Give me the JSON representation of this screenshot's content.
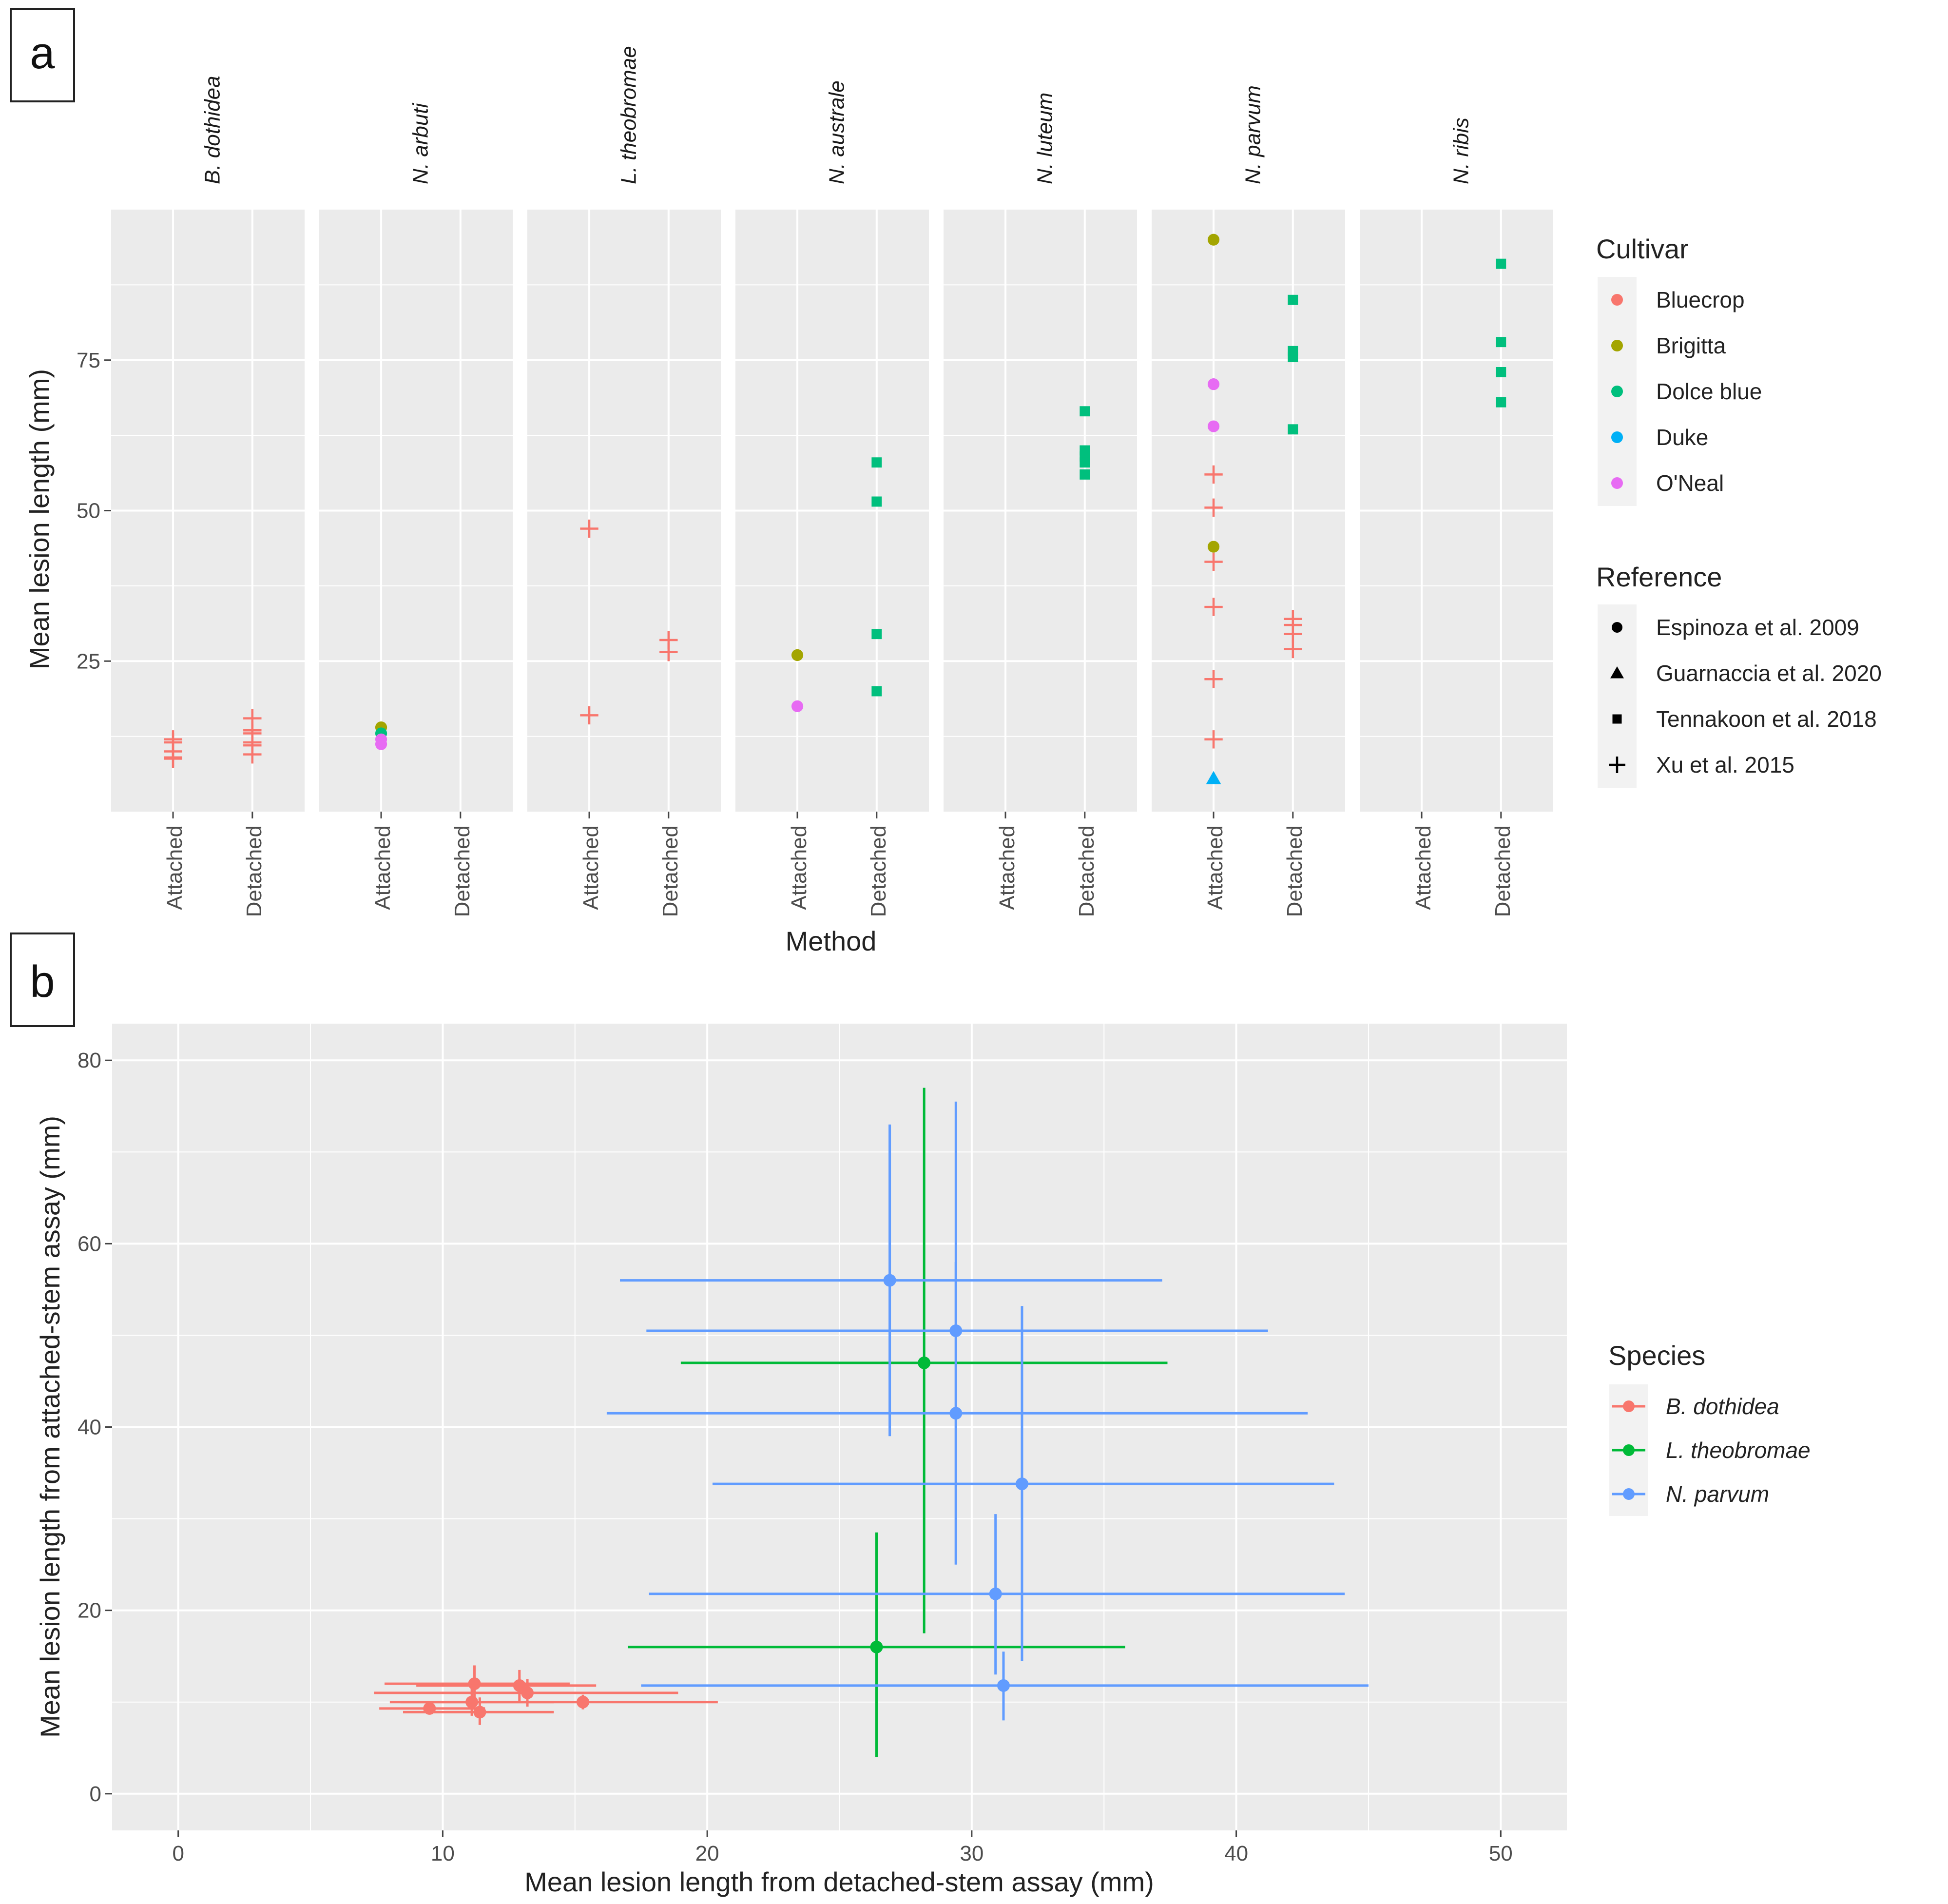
{
  "figure": {
    "panel_a_label": "a",
    "panel_b_label": "b"
  },
  "colors": {
    "panel_bg": "#EBEBEB",
    "grid": "#FFFFFF",
    "Bluecrop": "#F8766D",
    "Brigitta": "#A3A500",
    "Dolce blue": "#00BF7D",
    "Duke": "#00B0F6",
    "O'Neal": "#E76BF3",
    "B. dothidea": "#F8766D",
    "L. theobromae": "#00BA38",
    "N. parvum": "#619CFF"
  },
  "chart_data": [
    {
      "id": "a",
      "type": "scatter",
      "ylabel": "Mean lesion length (mm)",
      "xlabel": "Method",
      "ylim": [
        0,
        100
      ],
      "yticks": [
        25,
        50,
        75
      ],
      "methods": [
        "Attached",
        "Detached"
      ],
      "facets": [
        {
          "name": "B. dothidea",
          "points": [
            {
              "m": "Attached",
              "y": 12,
              "c": "Bluecrop",
              "r": "Xu et al. 2015"
            },
            {
              "m": "Attached",
              "y": 11.5,
              "c": "Bluecrop",
              "r": "Xu et al. 2015"
            },
            {
              "m": "Attached",
              "y": 10,
              "c": "Bluecrop",
              "r": "Xu et al. 2015"
            },
            {
              "m": "Attached",
              "y": 9,
              "c": "Bluecrop",
              "r": "Xu et al. 2015"
            },
            {
              "m": "Attached",
              "y": 8.8,
              "c": "Bluecrop",
              "r": "Xu et al. 2015"
            },
            {
              "m": "Detached",
              "y": 15.5,
              "c": "Bluecrop",
              "r": "Xu et al. 2015"
            },
            {
              "m": "Detached",
              "y": 13.5,
              "c": "Bluecrop",
              "r": "Xu et al. 2015"
            },
            {
              "m": "Detached",
              "y": 13,
              "c": "Bluecrop",
              "r": "Xu et al. 2015"
            },
            {
              "m": "Detached",
              "y": 11.5,
              "c": "Bluecrop",
              "r": "Xu et al. 2015"
            },
            {
              "m": "Detached",
              "y": 11,
              "c": "Bluecrop",
              "r": "Xu et al. 2015"
            },
            {
              "m": "Detached",
              "y": 9.5,
              "c": "Bluecrop",
              "r": "Xu et al. 2015"
            }
          ]
        },
        {
          "name": "N. arbuti",
          "points": [
            {
              "m": "Attached",
              "y": 14,
              "c": "Brigitta",
              "r": "Espinoza et al. 2009"
            },
            {
              "m": "Attached",
              "y": 13,
              "c": "Dolce blue",
              "r": "Espinoza et al. 2009"
            },
            {
              "m": "Attached",
              "y": 12,
              "c": "O'Neal",
              "r": "Espinoza et al. 2009"
            },
            {
              "m": "Attached",
              "y": 11.2,
              "c": "O'Neal",
              "r": "Espinoza et al. 2009"
            }
          ]
        },
        {
          "name": "L. theobromae",
          "points": [
            {
              "m": "Attached",
              "y": 47,
              "c": "Bluecrop",
              "r": "Xu et al. 2015"
            },
            {
              "m": "Attached",
              "y": 16,
              "c": "Bluecrop",
              "r": "Xu et al. 2015"
            },
            {
              "m": "Detached",
              "y": 28.5,
              "c": "Bluecrop",
              "r": "Xu et al. 2015"
            },
            {
              "m": "Detached",
              "y": 26.5,
              "c": "Bluecrop",
              "r": "Xu et al. 2015"
            }
          ]
        },
        {
          "name": "N. australe",
          "points": [
            {
              "m": "Attached",
              "y": 26,
              "c": "Brigitta",
              "r": "Espinoza et al. 2009"
            },
            {
              "m": "Attached",
              "y": 17.5,
              "c": "O'Neal",
              "r": "Espinoza et al. 2009"
            },
            {
              "m": "Detached",
              "y": 58,
              "c": "Dolce blue",
              "r": "Tennakoon et al. 2018"
            },
            {
              "m": "Detached",
              "y": 51.5,
              "c": "Dolce blue",
              "r": "Tennakoon et al. 2018"
            },
            {
              "m": "Detached",
              "y": 29.5,
              "c": "Dolce blue",
              "r": "Tennakoon et al. 2018"
            },
            {
              "m": "Detached",
              "y": 20,
              "c": "Dolce blue",
              "r": "Tennakoon et al. 2018"
            }
          ]
        },
        {
          "name": "N. luteum",
          "points": [
            {
              "m": "Detached",
              "y": 66.5,
              "c": "Dolce blue",
              "r": "Tennakoon et al. 2018"
            },
            {
              "m": "Detached",
              "y": 60,
              "c": "Dolce blue",
              "r": "Tennakoon et al. 2018"
            },
            {
              "m": "Detached",
              "y": 59,
              "c": "Dolce blue",
              "r": "Tennakoon et al. 2018"
            },
            {
              "m": "Detached",
              "y": 58,
              "c": "Dolce blue",
              "r": "Tennakoon et al. 2018"
            },
            {
              "m": "Detached",
              "y": 56,
              "c": "Dolce blue",
              "r": "Tennakoon et al. 2018"
            }
          ]
        },
        {
          "name": "N. parvum",
          "points": [
            {
              "m": "Attached",
              "y": 95,
              "c": "Brigitta",
              "r": "Espinoza et al. 2009"
            },
            {
              "m": "Attached",
              "y": 71,
              "c": "O'Neal",
              "r": "Espinoza et al. 2009"
            },
            {
              "m": "Attached",
              "y": 64,
              "c": "O'Neal",
              "r": "Espinoza et al. 2009"
            },
            {
              "m": "Attached",
              "y": 56,
              "c": "Bluecrop",
              "r": "Xu et al. 2015"
            },
            {
              "m": "Attached",
              "y": 50.5,
              "c": "Bluecrop",
              "r": "Xu et al. 2015"
            },
            {
              "m": "Attached",
              "y": 44,
              "c": "Brigitta",
              "r": "Espinoza et al. 2009"
            },
            {
              "m": "Attached",
              "y": 41.5,
              "c": "Bluecrop",
              "r": "Xu et al. 2015"
            },
            {
              "m": "Attached",
              "y": 34,
              "c": "Bluecrop",
              "r": "Xu et al. 2015"
            },
            {
              "m": "Attached",
              "y": 22,
              "c": "Bluecrop",
              "r": "Xu et al. 2015"
            },
            {
              "m": "Attached",
              "y": 12,
              "c": "Bluecrop",
              "r": "Xu et al. 2015"
            },
            {
              "m": "Attached",
              "y": 5.5,
              "c": "Duke",
              "r": "Guarnaccia et al. 2020"
            },
            {
              "m": "Detached",
              "y": 85,
              "c": "Dolce blue",
              "r": "Tennakoon et al. 2018"
            },
            {
              "m": "Detached",
              "y": 76.5,
              "c": "Dolce blue",
              "r": "Tennakoon et al. 2018"
            },
            {
              "m": "Detached",
              "y": 75.5,
              "c": "Dolce blue",
              "r": "Tennakoon et al. 2018"
            },
            {
              "m": "Detached",
              "y": 63.5,
              "c": "Dolce blue",
              "r": "Tennakoon et al. 2018"
            },
            {
              "m": "Detached",
              "y": 32,
              "c": "Bluecrop",
              "r": "Xu et al. 2015"
            },
            {
              "m": "Detached",
              "y": 31,
              "c": "Bluecrop",
              "r": "Xu et al. 2015"
            },
            {
              "m": "Detached",
              "y": 29.5,
              "c": "Bluecrop",
              "r": "Xu et al. 2015"
            },
            {
              "m": "Detached",
              "y": 27,
              "c": "Bluecrop",
              "r": "Xu et al. 2015"
            }
          ]
        },
        {
          "name": "N. ribis",
          "points": [
            {
              "m": "Detached",
              "y": 91,
              "c": "Dolce blue",
              "r": "Tennakoon et al. 2018"
            },
            {
              "m": "Detached",
              "y": 78,
              "c": "Dolce blue",
              "r": "Tennakoon et al. 2018"
            },
            {
              "m": "Detached",
              "y": 73,
              "c": "Dolce blue",
              "r": "Tennakoon et al. 2018"
            },
            {
              "m": "Detached",
              "y": 68,
              "c": "Dolce blue",
              "r": "Tennakoon et al. 2018"
            }
          ]
        }
      ],
      "legend_cultivar": {
        "title": "Cultivar",
        "items": [
          "Bluecrop",
          "Brigitta",
          "Dolce blue",
          "Duke",
          "O'Neal"
        ]
      },
      "legend_reference": {
        "title": "Reference",
        "items": [
          {
            "label": "Espinoza et al. 2009",
            "shape": "circle"
          },
          {
            "label": "Guarnaccia et al. 2020",
            "shape": "triangle"
          },
          {
            "label": "Tennakoon et al. 2018",
            "shape": "square"
          },
          {
            "label": "Xu et al. 2015",
            "shape": "plus"
          }
        ]
      }
    },
    {
      "id": "b",
      "type": "scatter",
      "xlabel": "Mean lesion length from detached-stem assay (mm)",
      "ylabel": "Mean lesion length from attached-stem assay (mm)",
      "xlim": [
        -2.5,
        52.5
      ],
      "ylim": [
        -4,
        84
      ],
      "xticks": [
        0,
        10,
        20,
        30,
        40,
        50
      ],
      "yticks": [
        0,
        20,
        40,
        60,
        80
      ],
      "legend": {
        "title": "Species",
        "items": [
          "B. dothidea",
          "L. theobromae",
          "N. parvum"
        ]
      },
      "series": [
        {
          "name": "B. dothidea",
          "points": [
            {
              "x": 11.2,
              "y": 12.0,
              "xerr": [
                7.8,
                14.8
              ],
              "yerr": [
                10.5,
                14.0
              ]
            },
            {
              "x": 12.9,
              "y": 11.8,
              "xerr": [
                9.0,
                15.8
              ],
              "yerr": [
                10.0,
                13.5
              ]
            },
            {
              "x": 13.2,
              "y": 11.0,
              "xerr": [
                7.4,
                18.9
              ],
              "yerr": [
                9.5,
                12.5
              ]
            },
            {
              "x": 9.5,
              "y": 9.3,
              "xerr": [
                7.6,
                11.6
              ],
              "yerr": [
                8.7,
                10.0
              ]
            },
            {
              "x": 11.1,
              "y": 10.0,
              "xerr": [
                8.0,
                14.2
              ],
              "yerr": [
                8.5,
                11.5
              ]
            },
            {
              "x": 11.4,
              "y": 8.9,
              "xerr": [
                8.5,
                14.2
              ],
              "yerr": [
                7.5,
                10.5
              ]
            },
            {
              "x": 15.3,
              "y": 10.0,
              "xerr": [
                8.4,
                20.4
              ],
              "yerr": [
                9.2,
                10.8
              ]
            }
          ]
        },
        {
          "name": "L. theobromae",
          "points": [
            {
              "x": 28.2,
              "y": 47.0,
              "xerr": [
                19.0,
                37.4
              ],
              "yerr": [
                17.5,
                77.0
              ]
            },
            {
              "x": 26.4,
              "y": 16.0,
              "xerr": [
                17.0,
                35.8
              ],
              "yerr": [
                4.0,
                28.5
              ]
            }
          ]
        },
        {
          "name": "N. parvum",
          "points": [
            {
              "x": 26.9,
              "y": 56.0,
              "xerr": [
                16.7,
                37.2
              ],
              "yerr": [
                39.0,
                73.0
              ]
            },
            {
              "x": 29.4,
              "y": 50.5,
              "xerr": [
                17.7,
                41.2
              ],
              "yerr": [
                25.0,
                75.5
              ]
            },
            {
              "x": 29.4,
              "y": 41.5,
              "xerr": [
                16.2,
                42.7
              ],
              "yerr": [
                25.0,
                58.0
              ]
            },
            {
              "x": 31.9,
              "y": 33.8,
              "xerr": [
                20.2,
                43.7
              ],
              "yerr": [
                14.5,
                53.2
              ]
            },
            {
              "x": 30.9,
              "y": 21.8,
              "xerr": [
                17.8,
                44.1
              ],
              "yerr": [
                13.0,
                30.5
              ]
            },
            {
              "x": 31.2,
              "y": 11.8,
              "xerr": [
                17.5,
                45.0
              ],
              "yerr": [
                8.0,
                15.5
              ]
            }
          ]
        }
      ]
    }
  ]
}
